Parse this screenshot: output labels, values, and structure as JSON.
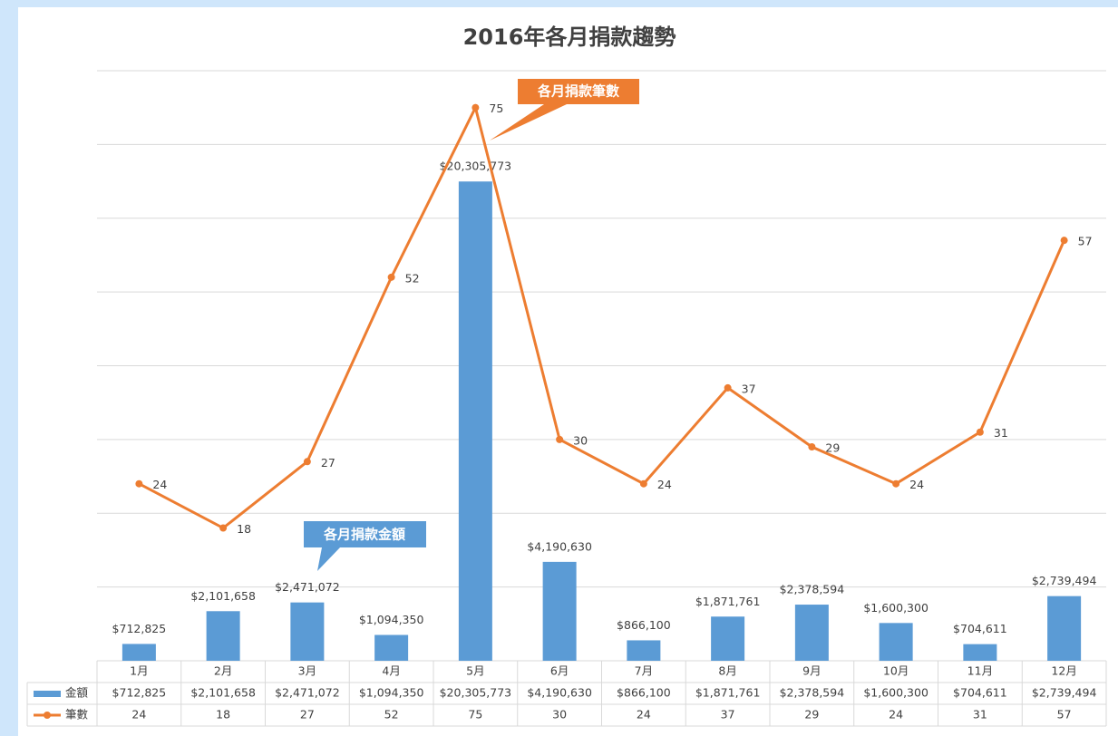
{
  "chart_data": {
    "type": "bar-line",
    "title": "2016年各月捐款趨勢",
    "categories": [
      "1月",
      "2月",
      "3月",
      "4月",
      "5月",
      "6月",
      "7月",
      "8月",
      "9月",
      "10月",
      "11月",
      "12月"
    ],
    "series": [
      {
        "name": "金額",
        "type": "bar",
        "color": "#5b9bd5",
        "values": [
          712825,
          2101658,
          2471072,
          1094350,
          20305773,
          4190630,
          866100,
          1871761,
          2378594,
          1600300,
          704611,
          2739494
        ],
        "value_labels": [
          "$712,825",
          "$2,101,658",
          "$2,471,072",
          "$1,094,350",
          "$20,305,773",
          "$4,190,630",
          "$866,100",
          "$1,871,761",
          "$2,378,594",
          "$1,600,300",
          "$704,611",
          "$2,739,494"
        ]
      },
      {
        "name": "筆數",
        "type": "line",
        "axis": "y2",
        "color": "#ed7d31",
        "values": [
          24,
          18,
          27,
          52,
          75,
          30,
          24,
          37,
          29,
          24,
          31,
          57
        ]
      }
    ],
    "ylim": [
      0,
      25000000
    ],
    "yticks": [
      0,
      3125000,
      6250000,
      9375000,
      12500000,
      15625000,
      18750000,
      21875000,
      25000000
    ],
    "y2lim": [
      0,
      80
    ],
    "y2ticks": [
      0,
      10,
      20,
      30,
      40,
      50,
      60,
      70,
      80
    ],
    "grid": true,
    "annotations": [
      "各月捐款筆數",
      "各月捐款金額"
    ]
  }
}
